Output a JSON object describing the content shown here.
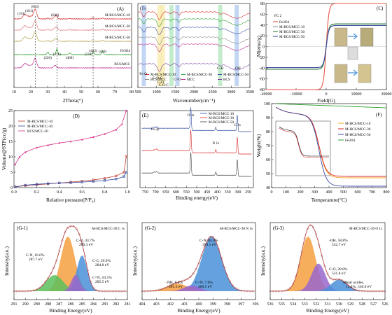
{
  "chart_data": [
    {
      "id": "A",
      "type": "line",
      "panel_label": "(A)",
      "xlabel": "2Theta(°)",
      "xlim": [
        10,
        80
      ],
      "xticks": [
        "10",
        "20",
        "30",
        "40",
        "50",
        "60",
        "70",
        "80"
      ],
      "series": [
        {
          "name": "M-BCS/MCC-10",
          "color": "#d62728"
        },
        {
          "name": "M-BCS/MCC-30",
          "color": "#e07b7b"
        },
        {
          "name": "M-BCS/MCC-50",
          "color": "#b5a04d"
        },
        {
          "name": "Fe3O4",
          "color": "#2ca02c"
        },
        {
          "name": "BCS/MCC",
          "color": "#c0308f"
        }
      ],
      "peak_labels": [
        "(101)",
        "(101)",
        "(002)",
        "(040)",
        "(311)",
        "(220)",
        "(400)",
        "(422)",
        "(511)",
        "(440)"
      ],
      "peak_colors": [
        "#1f4e9e",
        "#1f4e9e",
        "#e08000",
        "#e08000",
        "#2ca02c",
        "#1f9ec5",
        "#1f4e9e",
        "#d62728",
        "#000000",
        "#d62728"
      ]
    },
    {
      "id": "B",
      "type": "line",
      "panel_label": "(B)",
      "xlabel": "Wavenumber(cm⁻¹)",
      "xlim": [
        500,
        3800
      ],
      "xticks": [
        "500",
        "1000",
        "1500",
        "2000",
        "2500",
        "3000",
        "3500"
      ],
      "legend": [
        "M-BCS/MCC-10",
        "M-BCS/MCC-30",
        "M-BCS/MCC-50",
        "BCS/MCC",
        "MCC",
        "BCS"
      ],
      "band_labels": [
        "Fe-O",
        "C-O-C",
        "C-O",
        "C-O-C",
        "C=O",
        "C-H",
        "-OH"
      ]
    },
    {
      "id": "C",
      "type": "line",
      "panel_label": "(C)",
      "xlabel": "Field(G)",
      "ylabel": "M(emu/g)",
      "xlim": [
        -20000,
        20000
      ],
      "ylim": [
        -80,
        80
      ],
      "xticks": [
        "-20000",
        "-10000",
        "0",
        "10000",
        "20000"
      ],
      "yticks": [
        "-80",
        "-60",
        "-40",
        "-20",
        "0",
        "20",
        "40",
        "60",
        "80"
      ],
      "series": [
        {
          "name": "Fe3O4",
          "color": "#e8574a",
          "ms": 80
        },
        {
          "name": "M-BCS/MCC-10",
          "color": "#8c8c8c",
          "ms": 42
        },
        {
          "name": "M-BCS/MCC-30",
          "color": "#2d7d3a",
          "ms": 42
        },
        {
          "name": "M-BCS/MCC-50",
          "color": "#3c4ba6",
          "ms": 39
        }
      ],
      "inset_text": "FC 2"
    },
    {
      "id": "D",
      "type": "line",
      "panel_label": "(D)",
      "xlabel": "Relative pressure(P/P₀)",
      "ylabel": "Volume@STP(cc/g)",
      "xlim": [
        0,
        1
      ],
      "ylim": [
        0,
        25
      ],
      "xticks": [
        "0.0",
        "0.2",
        "0.4",
        "0.6",
        "0.8",
        "1.0"
      ],
      "yticks": [
        "0",
        "5",
        "10",
        "15",
        "20",
        "25"
      ],
      "series": [
        {
          "name": "M-BCS/MCC-10",
          "color": "#c0392b",
          "marker": "circle",
          "x": [
            0.01,
            0.1,
            0.2,
            0.3,
            0.4,
            0.5,
            0.6,
            0.7,
            0.8,
            0.9,
            0.97,
            0.99
          ],
          "y": [
            0.3,
            0.6,
            0.9,
            1.2,
            1.5,
            1.8,
            2.1,
            2.5,
            3.0,
            3.8,
            5.0,
            10.2
          ]
        },
        {
          "name": "M-BCS/MCC-30",
          "color": "#2e4aa0",
          "marker": "square",
          "x": [
            0.01,
            0.1,
            0.2,
            0.3,
            0.4,
            0.5,
            0.6,
            0.7,
            0.8,
            0.9,
            0.97,
            0.99
          ],
          "y": [
            0.2,
            0.8,
            1.1,
            1.3,
            1.5,
            1.6,
            1.8,
            2.0,
            2.3,
            2.8,
            3.6,
            5.0
          ]
        },
        {
          "name": "BCS/MCC-30",
          "color": "#d6338c",
          "marker": "triangle",
          "x": [
            0.01,
            0.05,
            0.1,
            0.2,
            0.3,
            0.4,
            0.5,
            0.6,
            0.7,
            0.8,
            0.9,
            0.95,
            0.99
          ],
          "y": [
            7.5,
            10.0,
            11.5,
            13.0,
            13.8,
            14.5,
            15.0,
            15.6,
            16.4,
            17.4,
            18.8,
            20.5,
            25.0
          ]
        }
      ]
    },
    {
      "id": "E",
      "type": "line",
      "panel_label": "(E)",
      "xlabel": "Binding energy(eV)",
      "xlim": [
        800,
        200
      ],
      "xticks": [
        "750",
        "700",
        "650",
        "600",
        "550",
        "500",
        "450",
        "400",
        "350",
        "300",
        "250"
      ],
      "legend": [
        "M-BCS/MCC-10",
        "M-BCS/MCC-30",
        "M-BCS/MCC-50"
      ],
      "labels": [
        "Fe 2p",
        "O 1s",
        "N 1s",
        "C 1s"
      ]
    },
    {
      "id": "F",
      "type": "line",
      "panel_label": "(F)",
      "xlabel": "Temperature(°C)",
      "ylabel": "Weight(%)",
      "xlim": [
        0,
        800
      ],
      "ylim": [
        40,
        100
      ],
      "xticks": [
        "0",
        "100",
        "200",
        "300",
        "400",
        "500",
        "600",
        "700",
        "800"
      ],
      "yticks": [
        "40",
        "50",
        "60",
        "70",
        "80",
        "90",
        "100"
      ],
      "series": [
        {
          "name": "M-HCS/MCC-10",
          "color": "#f5a623"
        },
        {
          "name": "M-HCS/MCC-30",
          "color": "#d62728"
        },
        {
          "name": "M-HCS/MCC-50",
          "color": "#3c4ba6"
        },
        {
          "name": "Fe3O4",
          "color": "#2ca02c"
        }
      ]
    },
    {
      "id": "G-1",
      "type": "area",
      "panel_label": "(G-1)",
      "title": "M-BCS/MCC-30  C 1s",
      "xlabel": "Binding Energy(eV)",
      "ylabel": "Intensity(a.u.)",
      "xlim": [
        292,
        280
      ],
      "xticks": [
        "291",
        "290",
        "289",
        "288",
        "287",
        "286",
        "285",
        "284",
        "283",
        "282",
        "281"
      ],
      "peaks": [
        {
          "label": "C-O, 43.7%",
          "value": "286.3 eV",
          "center": 286.3,
          "color": "#f5a040"
        },
        {
          "label": "C-C, 29.9%",
          "value": "284.8 eV",
          "center": 284.8,
          "color": "#4a90d9"
        },
        {
          "label": "C-N, 16.0%",
          "value": "287.7 eV",
          "center": 287.7,
          "color": "#5cbf5c"
        },
        {
          "label": "C=N, 10.5%",
          "value": "285.5 eV",
          "center": 285.5,
          "color": "#9966cc"
        }
      ]
    },
    {
      "id": "G-2",
      "type": "area",
      "panel_label": "(G-2)",
      "title": "M-BCS/MCC-30  N 1s",
      "xlabel": "Binding Energy(eV)",
      "ylabel": "Intensity(a.u.)",
      "xlim": [
        404,
        396
      ],
      "xticks": [
        "404",
        "403",
        "402",
        "401",
        "400",
        "399",
        "398",
        "397",
        "396"
      ],
      "peaks": [
        {
          "label": "C-N, 84.0%",
          "value": "399.1 eV",
          "center": 399.1,
          "color": "#4a90d9"
        },
        {
          "label": "-NH, 8.4%",
          "value": "401.5 eV",
          "center": 401.5,
          "color": "#f5a040"
        },
        {
          "label": "C=N, 7.6%",
          "value": "400.5 eV",
          "center": 400.5,
          "color": "#9966cc"
        }
      ]
    },
    {
      "id": "G-3",
      "type": "area",
      "panel_label": "(G-3)",
      "title": "M-BCS/MCC-30  O 1s",
      "xlabel": "Binding Energy(eV)",
      "ylabel": "Intensity(a.u.)",
      "xlim": [
        536,
        526
      ],
      "xticks": [
        "536",
        "535",
        "534",
        "533",
        "532",
        "531",
        "530",
        "529",
        "528",
        "527",
        "526"
      ],
      "peaks": [
        {
          "label": "-OH, 58.8%",
          "value": "532.7 eV",
          "center": 532.7,
          "color": "#f5a040"
        },
        {
          "label": "C-O, 28.8%",
          "value": "531.8 eV",
          "center": 531.8,
          "color": "#9966cc"
        },
        {
          "label": "Metal oxides,",
          "value": "12.4%, 530.0 eV",
          "center": 530.0,
          "color": "#4a90d9"
        }
      ]
    }
  ]
}
